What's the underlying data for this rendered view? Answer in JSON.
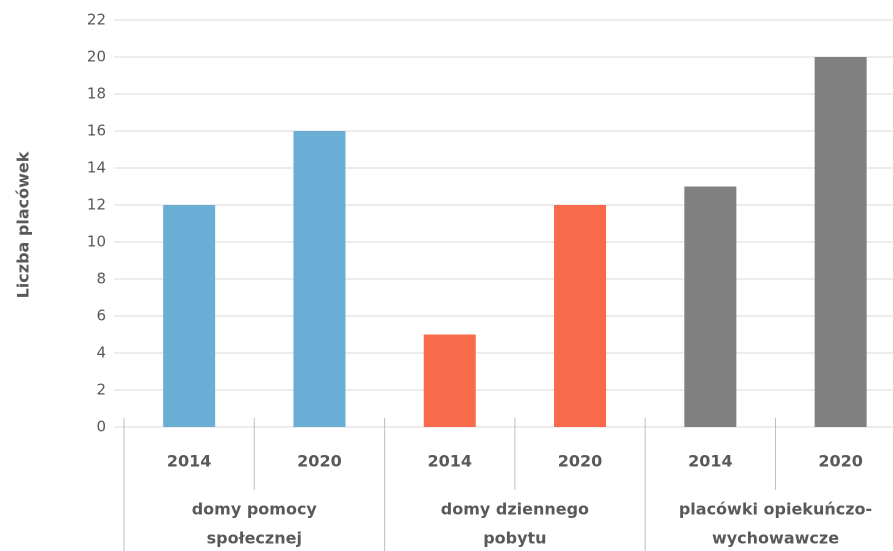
{
  "chart_data": {
    "type": "bar",
    "y_label": "Liczba placówek",
    "categories": [
      "2014",
      "2020",
      "2014",
      "2020",
      "2014",
      "2020"
    ],
    "values": [
      12,
      16,
      5,
      12,
      13,
      20
    ],
    "groups": [
      {
        "label": [
          "domy pomocy",
          "społecznej"
        ],
        "color": "#6aaed6",
        "size": 2
      },
      {
        "label": [
          "domy dziennego",
          "pobytu"
        ],
        "color": "#f96a4a",
        "size": 2
      },
      {
        "label": [
          "placówki opiekuńczo-",
          "wychowawcze"
        ],
        "color": "#808080",
        "size": 2
      }
    ],
    "ylim": [
      0,
      22
    ],
    "yticks": [
      0,
      2,
      4,
      6,
      8,
      10,
      12,
      14,
      16,
      18,
      20,
      22
    ],
    "grid": true
  }
}
